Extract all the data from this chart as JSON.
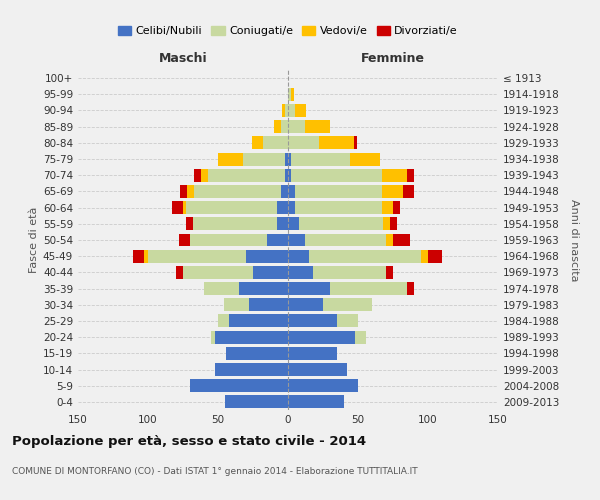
{
  "age_groups": [
    "0-4",
    "5-9",
    "10-14",
    "15-19",
    "20-24",
    "25-29",
    "30-34",
    "35-39",
    "40-44",
    "45-49",
    "50-54",
    "55-59",
    "60-64",
    "65-69",
    "70-74",
    "75-79",
    "80-84",
    "85-89",
    "90-94",
    "95-99",
    "100+"
  ],
  "birth_years": [
    "2009-2013",
    "2004-2008",
    "1999-2003",
    "1994-1998",
    "1989-1993",
    "1984-1988",
    "1979-1983",
    "1974-1978",
    "1969-1973",
    "1964-1968",
    "1959-1963",
    "1954-1958",
    "1949-1953",
    "1944-1948",
    "1939-1943",
    "1934-1938",
    "1929-1933",
    "1924-1928",
    "1919-1923",
    "1914-1918",
    "≤ 1913"
  ],
  "colors": {
    "celibi": "#4472c4",
    "coniugati": "#c8d9a0",
    "vedovi": "#ffc000",
    "divorziati": "#cc0000"
  },
  "male": {
    "celibi": [
      45,
      70,
      52,
      44,
      52,
      42,
      28,
      35,
      25,
      30,
      15,
      8,
      8,
      5,
      2,
      2,
      0,
      0,
      0,
      0,
      0
    ],
    "coniugati": [
      0,
      0,
      0,
      0,
      3,
      8,
      18,
      25,
      50,
      70,
      55,
      60,
      65,
      62,
      55,
      30,
      18,
      5,
      2,
      0,
      0
    ],
    "vedovi": [
      0,
      0,
      0,
      0,
      0,
      0,
      0,
      0,
      0,
      3,
      0,
      0,
      2,
      5,
      5,
      18,
      8,
      5,
      2,
      0,
      0
    ],
    "divorziati": [
      0,
      0,
      0,
      0,
      0,
      0,
      0,
      0,
      5,
      8,
      8,
      5,
      8,
      5,
      5,
      0,
      0,
      0,
      0,
      0,
      0
    ]
  },
  "female": {
    "nubili": [
      40,
      50,
      42,
      35,
      48,
      35,
      25,
      30,
      18,
      15,
      12,
      8,
      5,
      5,
      2,
      2,
      0,
      0,
      0,
      0,
      0
    ],
    "coniugate": [
      0,
      0,
      0,
      0,
      8,
      15,
      35,
      55,
      52,
      80,
      58,
      60,
      62,
      62,
      65,
      42,
      22,
      12,
      5,
      2,
      0
    ],
    "vedove": [
      0,
      0,
      0,
      0,
      0,
      0,
      0,
      0,
      0,
      5,
      5,
      5,
      8,
      15,
      18,
      22,
      25,
      18,
      8,
      2,
      0
    ],
    "divorziate": [
      0,
      0,
      0,
      0,
      0,
      0,
      0,
      5,
      5,
      10,
      12,
      5,
      5,
      8,
      5,
      0,
      2,
      0,
      0,
      0,
      0
    ]
  },
  "xlim": 150,
  "title": "Popolazione per età, sesso e stato civile - 2014",
  "subtitle": "COMUNE DI MONTORFANO (CO) - Dati ISTAT 1° gennaio 2014 - Elaborazione TUTTITALIA.IT",
  "xlabel_left": "Maschi",
  "xlabel_right": "Femmine",
  "ylabel_left": "Fasce di età",
  "ylabel_right": "Anni di nascita",
  "legend_labels": [
    "Celibi/Nubili",
    "Coniugati/e",
    "Vedovi/e",
    "Divorziati/e"
  ],
  "background_color": "#f0f0f0",
  "grid_color": "#cccccc"
}
